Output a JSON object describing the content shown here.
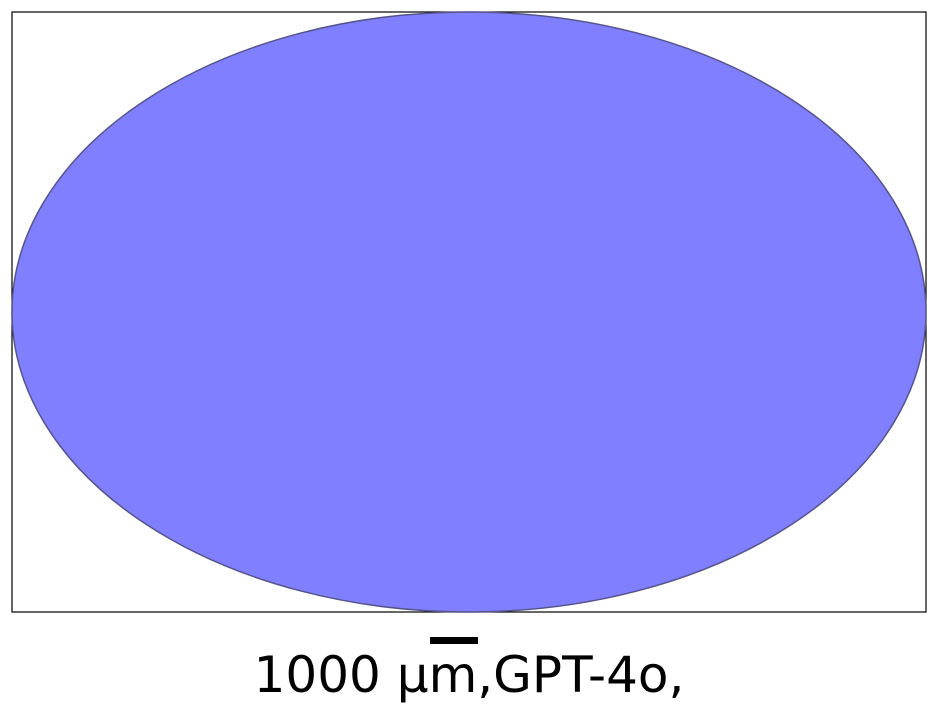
{
  "figure": {
    "shape": "ellipse",
    "fill_color": "#7f7fff",
    "stroke_color": "#55558a",
    "frame_color": "#000000"
  },
  "scale_bar": {
    "value": 1000,
    "unit": "μm",
    "color": "#000000"
  },
  "caption": {
    "text": "1000 μm,GPT-4o,"
  }
}
